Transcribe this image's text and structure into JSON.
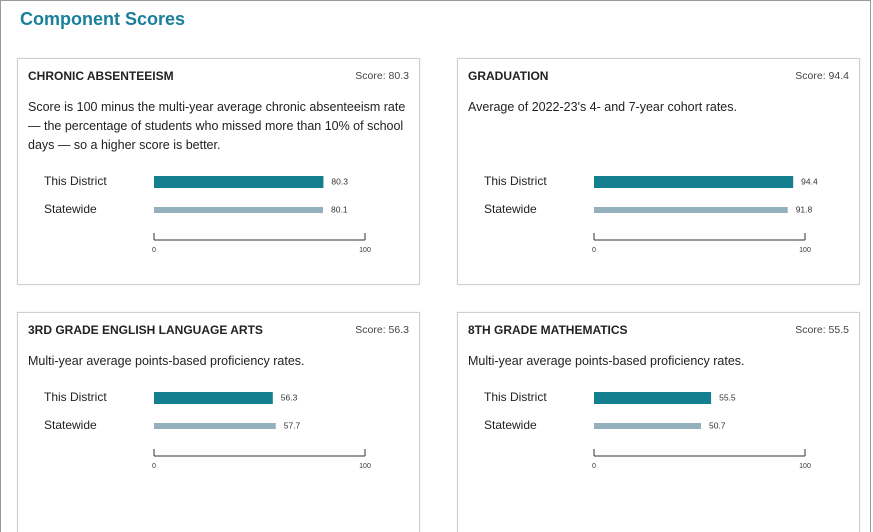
{
  "title": "Component Scores",
  "chart_data": [
    {
      "type": "bar",
      "title": "CHRONIC ABSENTEEISM",
      "score": "Score: 80.3",
      "subtitle": "Score is 100 minus the multi-year average chronic absenteeism rate — the percentage of students who missed more than 10% of school days — so a higher score is better.",
      "categories": [
        "This District",
        "Statewide"
      ],
      "values": [
        80.3,
        80.1
      ],
      "colors": [
        "#147f8f",
        "#93b1bc"
      ],
      "xlim": [
        0,
        100
      ],
      "xticks": [
        0,
        100
      ]
    },
    {
      "type": "bar",
      "title": "GRADUATION",
      "score": "Score: 94.4",
      "subtitle": "Average of 2022-23's 4- and 7-year cohort rates.",
      "categories": [
        "This District",
        "Statewide"
      ],
      "values": [
        94.4,
        91.8
      ],
      "colors": [
        "#147f8f",
        "#93b1bc"
      ],
      "xlim": [
        0,
        100
      ],
      "xticks": [
        0,
        100
      ]
    },
    {
      "type": "bar",
      "title": "3RD GRADE ENGLISH LANGUAGE ARTS",
      "score": "Score: 56.3",
      "subtitle": "Multi-year average points-based proficiency rates.",
      "categories": [
        "This District",
        "Statewide"
      ],
      "values": [
        56.3,
        57.7
      ],
      "colors": [
        "#147f8f",
        "#93b1bc"
      ],
      "xlim": [
        0,
        100
      ],
      "xticks": [
        0,
        100
      ]
    },
    {
      "type": "bar",
      "title": "8TH GRADE MATHEMATICS",
      "score": "Score: 55.5",
      "subtitle": "Multi-year average points-based proficiency rates.",
      "categories": [
        "This District",
        "Statewide"
      ],
      "values": [
        55.5,
        50.7
      ],
      "colors": [
        "#147f8f",
        "#93b1bc"
      ],
      "xlim": [
        0,
        100
      ],
      "xticks": [
        0,
        100
      ]
    }
  ]
}
